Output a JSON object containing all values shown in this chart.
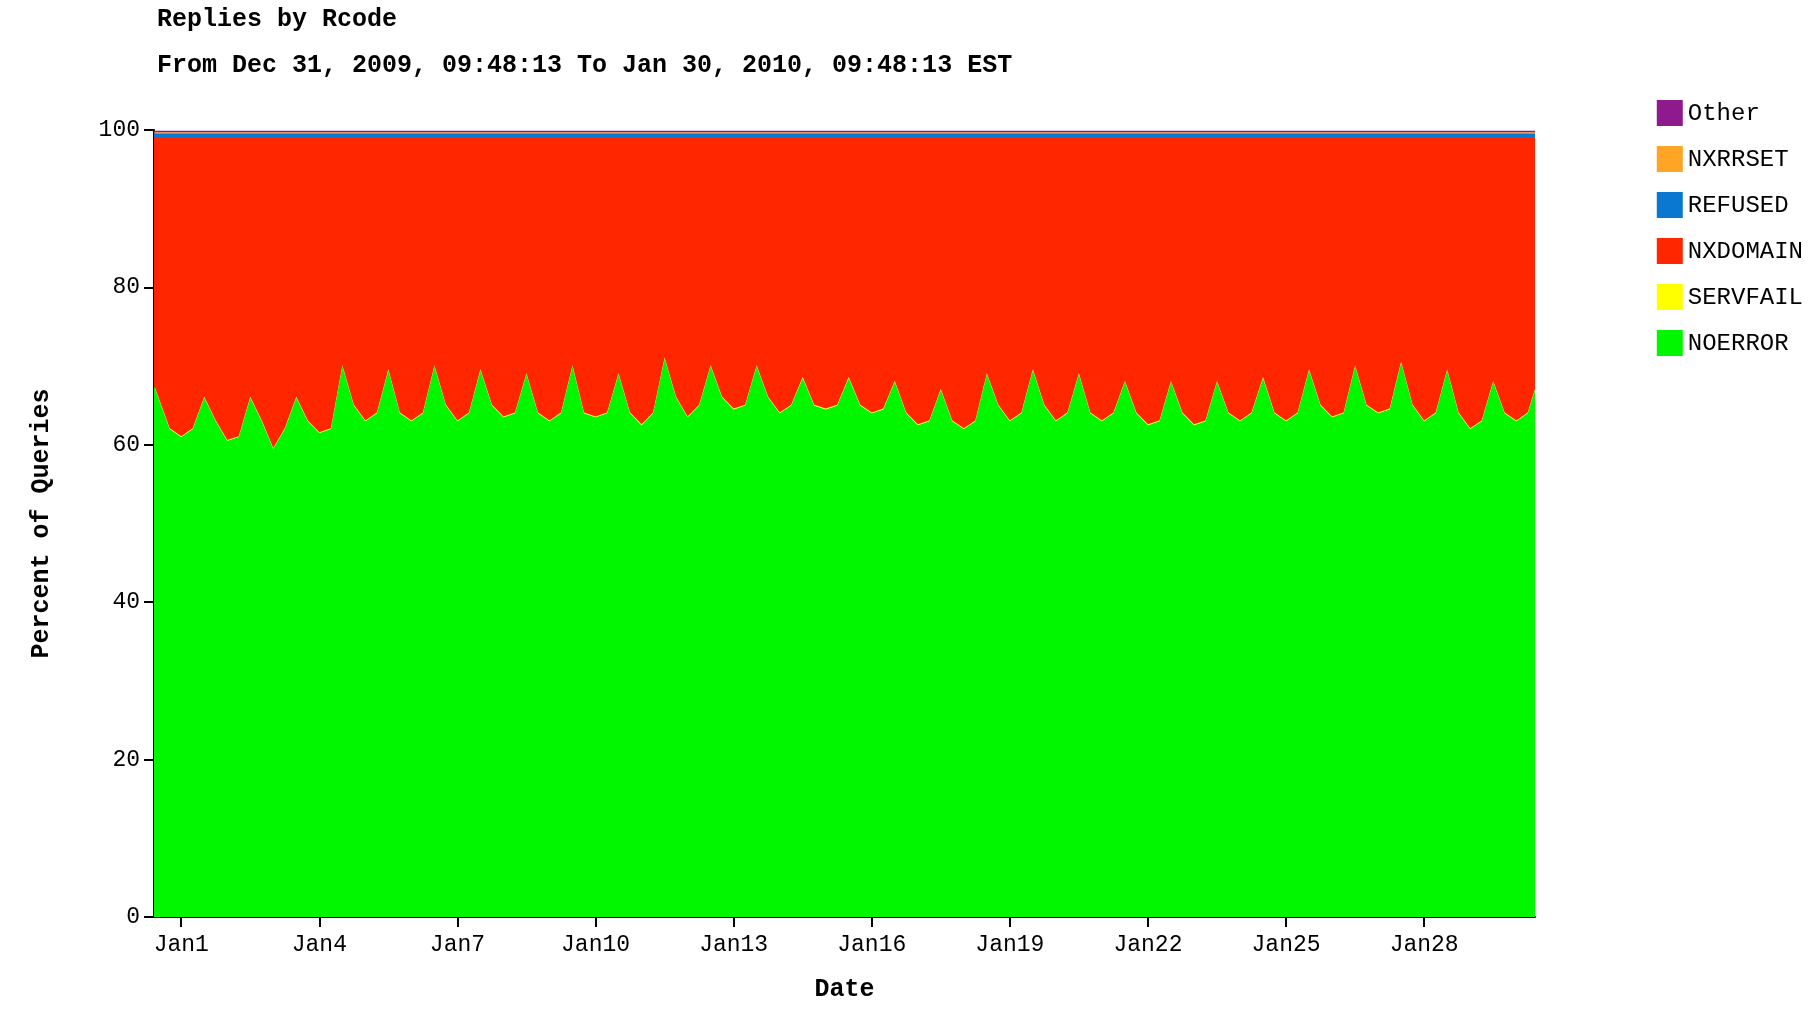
{
  "chart_data": {
    "type": "area",
    "stacked": true,
    "title": "Replies by Rcode",
    "subtitle": "From Dec 31, 2009, 09:48:13 To Jan 30, 2010, 09:48:13 EST",
    "xlabel": "Date",
    "ylabel": "Percent of Queries",
    "legend": "right",
    "marker": "none",
    "ylim": [
      0,
      100
    ],
    "yticks": [
      0,
      20,
      40,
      60,
      80,
      100
    ],
    "xlim": [
      "2009-12-31T09:48",
      "2010-01-30T09:48"
    ],
    "xticks": [
      {
        "value": "2010-01-01",
        "label": "Jan1"
      },
      {
        "value": "2010-01-04",
        "label": "Jan4"
      },
      {
        "value": "2010-01-07",
        "label": "Jan7"
      },
      {
        "value": "2010-01-10",
        "label": "Jan10"
      },
      {
        "value": "2010-01-13",
        "label": "Jan13"
      },
      {
        "value": "2010-01-16",
        "label": "Jan16"
      },
      {
        "value": "2010-01-19",
        "label": "Jan19"
      },
      {
        "value": "2010-01-22",
        "label": "Jan22"
      },
      {
        "value": "2010-01-25",
        "label": "Jan25"
      },
      {
        "value": "2010-01-28",
        "label": "Jan28"
      }
    ],
    "x": [
      "2009-12-31T09:48",
      "2009-12-31T18:00",
      "2010-01-01T00:00",
      "2010-01-01T06:00",
      "2010-01-01T12:00",
      "2010-01-01T18:00",
      "2010-01-02T00:00",
      "2010-01-02T06:00",
      "2010-01-02T12:00",
      "2010-01-02T18:00",
      "2010-01-03T00:00",
      "2010-01-03T06:00",
      "2010-01-03T12:00",
      "2010-01-03T18:00",
      "2010-01-04T00:00",
      "2010-01-04T06:00",
      "2010-01-04T12:00",
      "2010-01-04T18:00",
      "2010-01-05T00:00",
      "2010-01-05T06:00",
      "2010-01-05T12:00",
      "2010-01-05T18:00",
      "2010-01-06T00:00",
      "2010-01-06T06:00",
      "2010-01-06T12:00",
      "2010-01-06T18:00",
      "2010-01-07T00:00",
      "2010-01-07T06:00",
      "2010-01-07T12:00",
      "2010-01-07T18:00",
      "2010-01-08T00:00",
      "2010-01-08T06:00",
      "2010-01-08T12:00",
      "2010-01-08T18:00",
      "2010-01-09T00:00",
      "2010-01-09T06:00",
      "2010-01-09T12:00",
      "2010-01-09T18:00",
      "2010-01-10T00:00",
      "2010-01-10T06:00",
      "2010-01-10T12:00",
      "2010-01-10T18:00",
      "2010-01-11T00:00",
      "2010-01-11T06:00",
      "2010-01-11T12:00",
      "2010-01-11T18:00",
      "2010-01-12T00:00",
      "2010-01-12T06:00",
      "2010-01-12T12:00",
      "2010-01-12T18:00",
      "2010-01-13T00:00",
      "2010-01-13T06:00",
      "2010-01-13T12:00",
      "2010-01-13T18:00",
      "2010-01-14T00:00",
      "2010-01-14T06:00",
      "2010-01-14T12:00",
      "2010-01-14T18:00",
      "2010-01-15T00:00",
      "2010-01-15T06:00",
      "2010-01-15T12:00",
      "2010-01-15T18:00",
      "2010-01-16T00:00",
      "2010-01-16T06:00",
      "2010-01-16T12:00",
      "2010-01-16T18:00",
      "2010-01-17T00:00",
      "2010-01-17T06:00",
      "2010-01-17T12:00",
      "2010-01-17T18:00",
      "2010-01-18T00:00",
      "2010-01-18T06:00",
      "2010-01-18T12:00",
      "2010-01-18T18:00",
      "2010-01-19T00:00",
      "2010-01-19T06:00",
      "2010-01-19T12:00",
      "2010-01-19T18:00",
      "2010-01-20T00:00",
      "2010-01-20T06:00",
      "2010-01-20T12:00",
      "2010-01-20T18:00",
      "2010-01-21T00:00",
      "2010-01-21T06:00",
      "2010-01-21T12:00",
      "2010-01-21T18:00",
      "2010-01-22T00:00",
      "2010-01-22T06:00",
      "2010-01-22T12:00",
      "2010-01-22T18:00",
      "2010-01-23T00:00",
      "2010-01-23T06:00",
      "2010-01-23T12:00",
      "2010-01-23T18:00",
      "2010-01-24T00:00",
      "2010-01-24T06:00",
      "2010-01-24T12:00",
      "2010-01-24T18:00",
      "2010-01-25T00:00",
      "2010-01-25T06:00",
      "2010-01-25T12:00",
      "2010-01-25T18:00",
      "2010-01-26T00:00",
      "2010-01-26T06:00",
      "2010-01-26T12:00",
      "2010-01-26T18:00",
      "2010-01-27T00:00",
      "2010-01-27T06:00",
      "2010-01-27T12:00",
      "2010-01-27T18:00",
      "2010-01-28T00:00",
      "2010-01-28T06:00",
      "2010-01-28T12:00",
      "2010-01-28T18:00",
      "2010-01-29T00:00",
      "2010-01-29T06:00",
      "2010-01-29T12:00",
      "2010-01-29T18:00",
      "2010-01-30T00:00",
      "2010-01-30T06:00",
      "2010-01-30T09:48"
    ],
    "series": [
      {
        "name": "NOERROR",
        "color": "#00f700",
        "values": [
          67.5,
          62,
          61,
          62,
          66,
          63,
          60.5,
          61,
          66,
          63,
          59.5,
          62,
          66,
          63,
          61.5,
          62,
          70,
          65,
          63,
          64,
          69.5,
          64,
          63,
          64,
          70,
          65,
          63,
          64,
          69.5,
          65,
          63.5,
          64,
          69,
          64,
          63,
          64,
          70,
          64,
          63.5,
          64,
          69,
          64,
          62.5,
          64,
          71,
          66,
          63.5,
          65,
          70,
          66,
          64.5,
          65,
          70,
          66,
          64,
          65,
          68.5,
          65,
          64.5,
          65,
          68.5,
          65,
          64,
          64.5,
          68,
          64,
          62.5,
          63,
          67,
          63,
          62,
          63,
          69,
          65,
          63,
          64,
          69.5,
          65,
          63,
          64,
          69,
          64,
          63,
          64,
          68,
          64,
          62.5,
          63,
          68,
          64,
          62.5,
          63,
          68,
          64,
          63,
          64,
          68.5,
          64,
          63,
          64,
          69.5,
          65,
          63.5,
          64,
          70,
          65,
          64,
          64.5,
          70.5,
          65,
          63,
          64,
          69.5,
          64,
          62,
          63,
          68,
          64,
          63,
          64,
          67
        ]
      },
      {
        "name": "SERVFAIL",
        "color": "#ffff00",
        "values": [
          0.1,
          0.1,
          0.1,
          0.1,
          0.1,
          0.1,
          0.1,
          0.1,
          0.1,
          0.1,
          0.1,
          0.1,
          0.1,
          0.1,
          0.1,
          0.1,
          0.1,
          0.1,
          0.1,
          0.1,
          0.1,
          0.1,
          0.1,
          0.1,
          0.1,
          0.1,
          0.1,
          0.1,
          0.1,
          0.1,
          0.1,
          0.1,
          0.1,
          0.1,
          0.1,
          0.1,
          0.1,
          0.1,
          0.1,
          0.1,
          0.1,
          0.1,
          0.1,
          0.1,
          0.1,
          0.1,
          0.1,
          0.1,
          0.1,
          0.1,
          0.1,
          0.1,
          0.1,
          0.1,
          0.1,
          0.1,
          0.1,
          0.1,
          0.1,
          0.1,
          0.1,
          0.1,
          0.1,
          0.1,
          0.1,
          0.1,
          0.1,
          0.1,
          0.1,
          0.1,
          0.1,
          0.1,
          0.1,
          0.1,
          0.1,
          0.1,
          0.1,
          0.1,
          0.1,
          0.1,
          0.1,
          0.1,
          0.1,
          0.1,
          0.1,
          0.1,
          0.1,
          0.1,
          0.1,
          0.1,
          0.1,
          0.1,
          0.1,
          0.1,
          0.1,
          0.1,
          0.1,
          0.1,
          0.1,
          0.1,
          0.1,
          0.1,
          0.1,
          0.1,
          0.1,
          0.1,
          0.1,
          0.1,
          0.1,
          0.1,
          0.1,
          0.1,
          0.1,
          0.1,
          0.1,
          0.1,
          0.1,
          0.1,
          0.1,
          0.1,
          0.1
        ]
      },
      {
        "name": "NXDOMAIN",
        "color": "#ff2600",
        "values": [
          31.5,
          37,
          38,
          37,
          33,
          36,
          38.5,
          38,
          33,
          36,
          39.5,
          37,
          33,
          36,
          37.5,
          37,
          29,
          34,
          36,
          35,
          29.5,
          35,
          36,
          35,
          29,
          34,
          36,
          35,
          29.5,
          34,
          35.5,
          35,
          30,
          35,
          36,
          35,
          29,
          35,
          35.5,
          35,
          30,
          35,
          36.5,
          35,
          28,
          33,
          35.5,
          34,
          29,
          33,
          34.5,
          34,
          29,
          33,
          35,
          34,
          30.5,
          34,
          34.5,
          34,
          30.5,
          34,
          35,
          34.5,
          31,
          35,
          36.5,
          36,
          32,
          36,
          37,
          36,
          30,
          34,
          36,
          35,
          29.5,
          34,
          36,
          35,
          30,
          35,
          36,
          35,
          31,
          35,
          36.5,
          36,
          31,
          35,
          36.5,
          36,
          31,
          35,
          36,
          35,
          30.5,
          35,
          36,
          35,
          29.5,
          34,
          35.5,
          35,
          29,
          34,
          35,
          34.5,
          28.5,
          34,
          36,
          35,
          29.5,
          35,
          37,
          36,
          31,
          35,
          36,
          35,
          32
        ]
      },
      {
        "name": "REFUSED",
        "color": "#0a78d0",
        "values": [
          0.5,
          0.5,
          0.5,
          0.5,
          0.5,
          0.5,
          0.5,
          0.5,
          0.5,
          0.5,
          0.5,
          0.5,
          0.5,
          0.5,
          0.5,
          0.5,
          0.5,
          0.5,
          0.5,
          0.5,
          0.5,
          0.5,
          0.5,
          0.5,
          0.5,
          0.5,
          0.5,
          0.5,
          0.5,
          0.5,
          0.5,
          0.5,
          0.5,
          0.5,
          0.5,
          0.5,
          0.5,
          0.5,
          0.5,
          0.5,
          0.5,
          0.5,
          0.5,
          0.5,
          0.5,
          0.5,
          0.5,
          0.5,
          0.5,
          0.5,
          0.5,
          0.5,
          0.5,
          0.5,
          0.5,
          0.5,
          0.5,
          0.5,
          0.5,
          0.5,
          0.5,
          0.5,
          0.5,
          0.5,
          0.5,
          0.5,
          0.5,
          0.5,
          0.5,
          0.5,
          0.5,
          0.5,
          0.5,
          0.5,
          0.5,
          0.5,
          0.5,
          0.5,
          0.5,
          0.5,
          0.5,
          0.5,
          0.5,
          0.5,
          0.5,
          0.5,
          0.5,
          0.5,
          0.5,
          0.5,
          0.5,
          0.5,
          0.5,
          0.5,
          0.5,
          0.5,
          0.5,
          0.5,
          0.5,
          0.5,
          0.5,
          0.5,
          0.5,
          0.5,
          0.5,
          0.5,
          0.5,
          0.5,
          0.5,
          0.5,
          0.5,
          0.5,
          0.5,
          0.5,
          0.5,
          0.5,
          0.5,
          0.5,
          0.5,
          0.5,
          0.5
        ]
      },
      {
        "name": "NXRRSET",
        "color": "#ffa526",
        "values": [
          0.1,
          0.1,
          0.1,
          0.1,
          0.1,
          0.1,
          0.1,
          0.1,
          0.1,
          0.1,
          0.1,
          0.1,
          0.1,
          0.1,
          0.1,
          0.1,
          0.1,
          0.1,
          0.1,
          0.1,
          0.1,
          0.1,
          0.1,
          0.1,
          0.1,
          0.1,
          0.1,
          0.1,
          0.1,
          0.1,
          0.1,
          0.1,
          0.1,
          0.1,
          0.1,
          0.1,
          0.1,
          0.1,
          0.1,
          0.1,
          0.1,
          0.1,
          0.1,
          0.1,
          0.1,
          0.1,
          0.1,
          0.1,
          0.1,
          0.1,
          0.1,
          0.1,
          0.1,
          0.1,
          0.1,
          0.1,
          0.1,
          0.1,
          0.1,
          0.1,
          0.1,
          0.1,
          0.1,
          0.1,
          0.1,
          0.1,
          0.1,
          0.1,
          0.1,
          0.1,
          0.1,
          0.1,
          0.1,
          0.1,
          0.1,
          0.1,
          0.1,
          0.1,
          0.1,
          0.1,
          0.1,
          0.1,
          0.1,
          0.1,
          0.1,
          0.1,
          0.1,
          0.1,
          0.1,
          0.1,
          0.1,
          0.1,
          0.1,
          0.1,
          0.1,
          0.1,
          0.1,
          0.1,
          0.1,
          0.1,
          0.1,
          0.1,
          0.1,
          0.1,
          0.1,
          0.1,
          0.1,
          0.1,
          0.1,
          0.1,
          0.1,
          0.1,
          0.1,
          0.1,
          0.1,
          0.1,
          0.1,
          0.1,
          0.1,
          0.1,
          0.1
        ]
      },
      {
        "name": "Other",
        "color": "#8e1a8e",
        "values": [
          0.2,
          0.2,
          0.2,
          0.2,
          0.2,
          0.2,
          0.2,
          0.2,
          0.2,
          0.2,
          0.2,
          0.2,
          0.2,
          0.2,
          0.2,
          0.2,
          0.2,
          0.2,
          0.2,
          0.2,
          0.2,
          0.2,
          0.2,
          0.2,
          0.2,
          0.2,
          0.2,
          0.2,
          0.2,
          0.2,
          0.2,
          0.2,
          0.2,
          0.2,
          0.2,
          0.2,
          0.2,
          0.2,
          0.2,
          0.2,
          0.2,
          0.2,
          0.2,
          0.2,
          0.2,
          0.2,
          0.2,
          0.2,
          0.2,
          0.2,
          0.2,
          0.2,
          0.2,
          0.2,
          0.2,
          0.2,
          0.2,
          0.2,
          0.2,
          0.2,
          0.2,
          0.2,
          0.2,
          0.2,
          0.2,
          0.2,
          0.2,
          0.2,
          0.2,
          0.2,
          0.2,
          0.2,
          0.2,
          0.2,
          0.2,
          0.2,
          0.2,
          0.2,
          0.2,
          0.2,
          0.2,
          0.2,
          0.2,
          0.2,
          0.2,
          0.2,
          0.2,
          0.2,
          0.2,
          0.2,
          0.2,
          0.2,
          0.2,
          0.2,
          0.2,
          0.2,
          0.2,
          0.2,
          0.2,
          0.2,
          0.2,
          0.2,
          0.2,
          0.2,
          0.2,
          0.2,
          0.2,
          0.2,
          0.2,
          0.2,
          0.2,
          0.2,
          0.2,
          0.2,
          0.2,
          0.2,
          0.2,
          0.2,
          0.2,
          0.2,
          0.2
        ]
      }
    ]
  }
}
